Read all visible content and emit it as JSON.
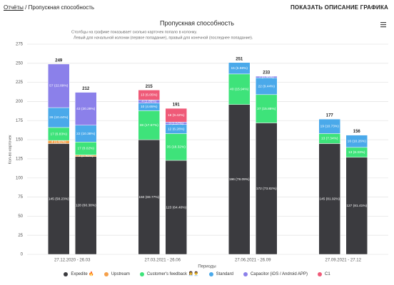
{
  "header": {
    "breadcrumb_link": "Отчёты",
    "breadcrumb_separator": "/",
    "breadcrumb_current": "Пропускная способность",
    "action": "ПОКАЗАТЬ ОПИСАНИЕ ГРАФИКА"
  },
  "chart_data": {
    "type": "bar",
    "stacked": true,
    "title": "Пропускная способность",
    "subtitle": [
      "Столбцы на графике показывает сколько карточек попало в колонку.",
      "Левый для начальной колонки (первое попадание), правый для конечной (последнее попадание)."
    ],
    "y_label": "Кол-во карточек",
    "x_label": "Периоды",
    "categories": [
      "27.12.2020 - 26.03",
      null,
      "27.03.2021 - 26.06",
      null,
      "27.06.2021 - 26.09",
      null,
      "27.09.2021 - 27.12",
      null
    ],
    "totals": [
      249,
      212,
      215,
      191,
      251,
      233,
      177,
      156
    ],
    "series": [
      {
        "name": "Expedite 🔥",
        "color": "#3b3b3f",
        "values": [
          145,
          128,
          150,
          123,
          196,
          172,
          145,
          127
        ],
        "value_labels": [
          "145 (58.23%)",
          "128 (60.38%)",
          "150 (69.77%)",
          "123 (64.40%)",
          "196 (78.09%)",
          "172 (73.82%)",
          "145 (81.92%)",
          "127 (81.41%)"
        ]
      },
      {
        "name": "Upstream",
        "color": "#f5a04a",
        "values": [
          4,
          2,
          null,
          null,
          null,
          null,
          null,
          null
        ],
        "value_labels": [
          "4 (1.61%)",
          "2 (0.94%)",
          null,
          null,
          null,
          null,
          null,
          null
        ]
      },
      {
        "name": "Customer's feedback 👩‍💼👨‍💼",
        "color": "#3ee37a",
        "values": [
          17,
          17,
          38,
          35,
          40,
          37,
          13,
          13
        ],
        "value_labels": [
          "17 (6.83%)",
          "17 (8.02%)",
          "38 (17.67%)",
          "35 (18.32%)",
          "40 (15.94%)",
          "37 (15.88%)",
          "13 (7.34%)",
          "13 (8.33%)"
        ]
      },
      {
        "name": "Standard",
        "color": "#4aa9ea",
        "values": [
          26,
          22,
          10,
          12,
          15,
          22,
          19,
          16
        ],
        "value_labels": [
          "26 (10.44%)",
          "22 (10.38%)",
          "10 (4.65%)",
          "12 (6.28%)",
          "15 (5.98%)",
          "22 (9.44%)",
          "19 (10.73%)",
          "16 (10.26%)"
        ]
      },
      {
        "name": "Capacitor (iOS / Android APP)",
        "color": "#8b80ea",
        "values": [
          57,
          43,
          4,
          3,
          null,
          2,
          null,
          null
        ],
        "value_labels": [
          "57 (22.89%)",
          "43 (20.28%)",
          "4 (1.86%)",
          "3 (1.57%)",
          null,
          "2 (0.86%)",
          null,
          null
        ]
      },
      {
        "name": "C1",
        "color": "#ef5a78",
        "values": [
          null,
          null,
          13,
          18,
          null,
          null,
          null,
          null
        ],
        "value_labels": [
          null,
          null,
          "13 (6.05%)",
          "18 (9.42%)",
          null,
          null,
          null,
          null
        ]
      }
    ],
    "ylim": [
      0,
      275
    ],
    "yticks": [
      0,
      25,
      50,
      75,
      100,
      125,
      150,
      175,
      200,
      225,
      250,
      275
    ],
    "grid": true,
    "legend": "bottom"
  }
}
